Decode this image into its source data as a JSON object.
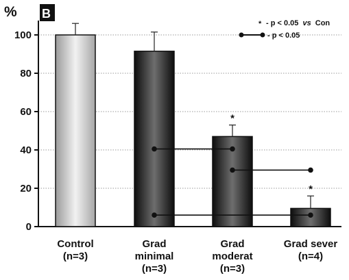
{
  "chart_data": {
    "type": "bar",
    "panel_label": "B",
    "ylabel": "%",
    "ylim": [
      0,
      110
    ],
    "yticks": [
      0,
      20,
      40,
      60,
      80,
      100
    ],
    "grid": true,
    "categories": [
      {
        "lines": [
          "Control",
          "(n=3)"
        ],
        "value": 100,
        "error": 6,
        "style": "light",
        "significant": false
      },
      {
        "lines": [
          "Grad",
          "minimal",
          "(n=3)"
        ],
        "value": 91.5,
        "error": 10,
        "style": "dark",
        "significant": false
      },
      {
        "lines": [
          "Grad",
          "moderat",
          "(n=3)"
        ],
        "value": 47,
        "error": 6,
        "style": "dark",
        "significant": true
      },
      {
        "lines": [
          "Grad sever",
          "(n=4)"
        ],
        "value": 9.5,
        "error": 6.5,
        "style": "dark",
        "significant": true
      }
    ],
    "comparisons": [
      {
        "from": 1,
        "to": 2,
        "y": 40.5
      },
      {
        "from": 2,
        "to": 3,
        "y": 29.5
      },
      {
        "from": 1,
        "to": 3,
        "y": 6
      }
    ],
    "star_symbol": "*",
    "legend": {
      "star_text": "- p < 0.05",
      "star_italic": "vs",
      "star_suffix": "Con",
      "line_text": "- p < 0.05"
    }
  }
}
